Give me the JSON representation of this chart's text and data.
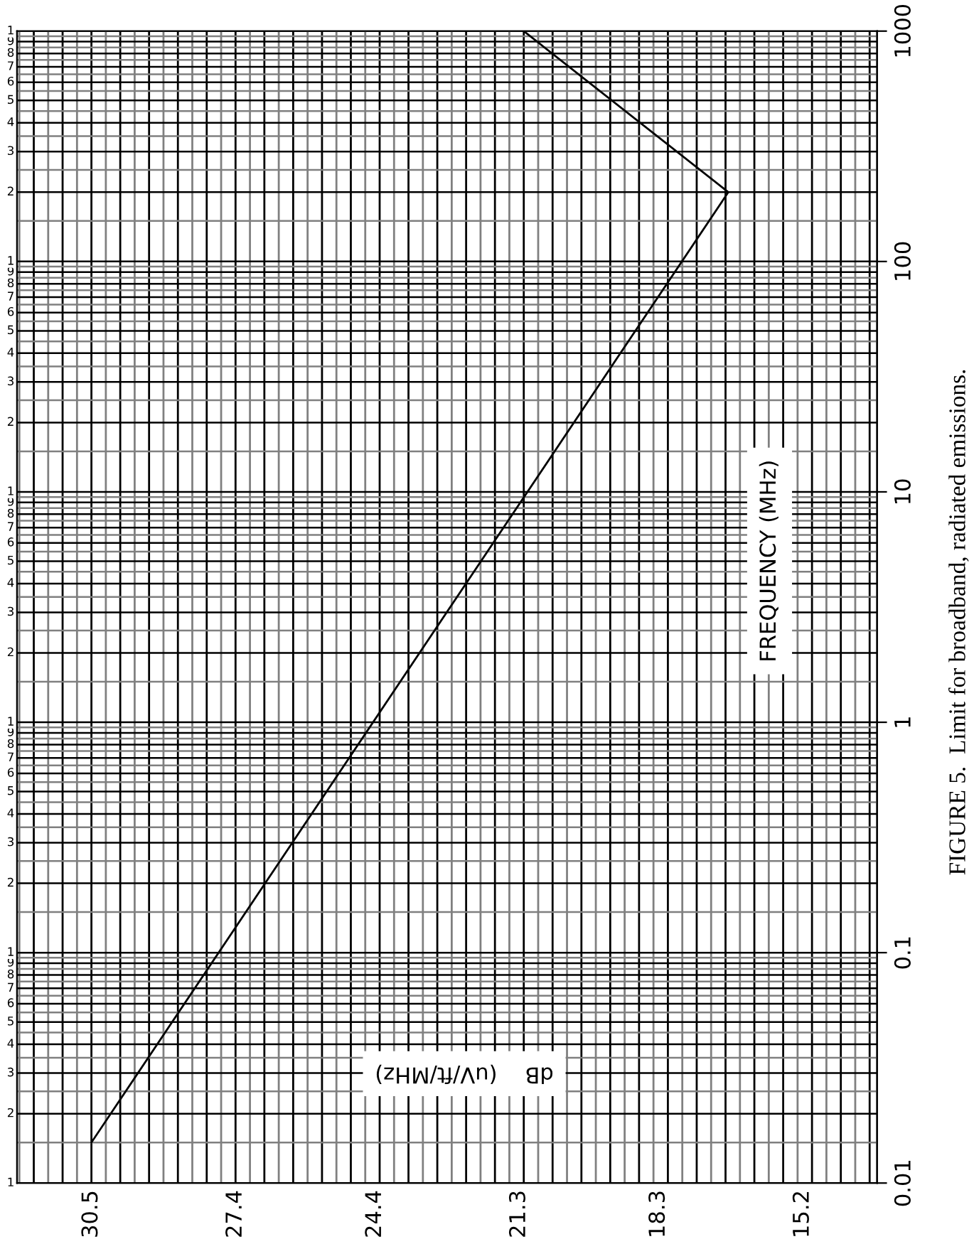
{
  "chart_data": {
    "type": "line",
    "title": "FIGURE 5.  Limit for broadband, radiated emissions.",
    "xlabel": "dB    (uV/ft/MHz)",
    "y2label": "FREQUENCY (MHz)",
    "series": [
      {
        "color": "#000000",
        "axis": "y2",
        "x": [
          30.5,
          16.8,
          21.2
        ],
        "values": [
          0.015,
          200,
          1000
        ]
      }
    ],
    "xlim": [
      32.1,
      13.6
    ],
    "xticks": [
      30.5,
      27.4,
      24.4,
      21.3,
      18.3,
      15.2
    ],
    "y2lim": [
      0.01,
      1000
    ],
    "y2ticks": [
      0.01,
      0.1,
      1,
      10,
      100,
      1000
    ],
    "log": "y2",
    "annotations": [
      "1",
      "2",
      "3",
      "4",
      "5",
      "6",
      "7",
      "8",
      "9",
      "1",
      "2",
      "3",
      "4",
      "5",
      "6",
      "7",
      "8",
      "9",
      "1",
      "2",
      "3",
      "4",
      "5",
      "6",
      "7",
      "8",
      "9",
      "1",
      "2",
      "3",
      "4",
      "5",
      "6",
      "7",
      "8",
      "9",
      "1",
      "2",
      "3",
      "4",
      "5",
      "6",
      "7",
      "8",
      "9",
      "1"
    ],
    "grid": true,
    "line_style": "solid",
    "marker": "none",
    "legend": false
  }
}
